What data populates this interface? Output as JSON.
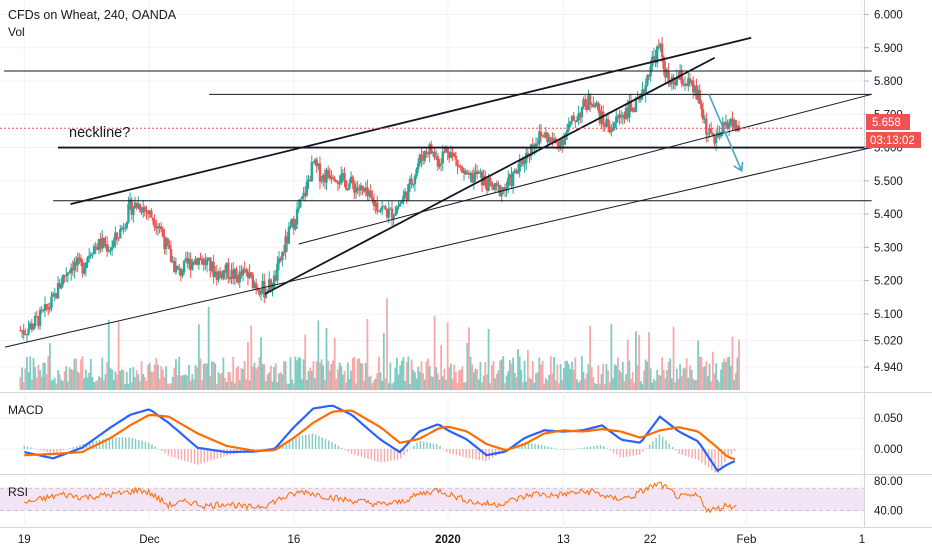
{
  "header": {
    "symbol": "CFDs on Wheat",
    "interval": "240",
    "broker": "OANDA",
    "sep": ", ",
    "vol_label": "Vol"
  },
  "colors": {
    "up": "#26a69a",
    "down": "#ef5350",
    "vol_up": "#80cbc4",
    "vol_down": "#f6a9a8",
    "macd": "#2962ff",
    "signal": "#ff6d00",
    "rsi": "#ff6d00",
    "rsi_band": "#f3e5f5",
    "price_tag": "#ef5350",
    "arrow": "#4aa3c7"
  },
  "chart_data": [
    {
      "type": "candlestick",
      "title": "CFDs on Wheat, 240, OANDA",
      "y_axis_ticks": [
        "6.000",
        "5.900",
        "5.800",
        "5.700",
        "5.600",
        "5.500",
        "5.400",
        "5.300",
        "5.200",
        "5.100",
        "5.020",
        "4.940"
      ],
      "ylim": [
        4.92,
        6.04
      ],
      "x_axis_ticks": [
        "19",
        "Dec",
        "16",
        "2020",
        "13",
        "22",
        "Feb",
        "1"
      ],
      "x_axis_tick_days": [
        19,
        32,
        47,
        63,
        75,
        84,
        94,
        106
      ],
      "last_price": "5.658",
      "countdown": "03:13:02",
      "annotation": "neckline?",
      "close_path": [
        [
          19,
          5.05
        ],
        [
          20,
          5.07
        ],
        [
          21,
          5.1
        ],
        [
          22,
          5.14
        ],
        [
          23,
          5.21
        ],
        [
          24,
          5.25
        ],
        [
          25,
          5.24
        ],
        [
          26,
          5.3
        ],
        [
          27,
          5.31
        ],
        [
          28,
          5.3
        ],
        [
          29,
          5.35
        ],
        [
          30,
          5.42
        ],
        [
          31,
          5.43
        ],
        [
          32,
          5.4
        ],
        [
          33,
          5.37
        ],
        [
          34,
          5.28
        ],
        [
          35,
          5.22
        ],
        [
          36,
          5.25
        ],
        [
          37,
          5.27
        ],
        [
          38,
          5.25
        ],
        [
          39,
          5.22
        ],
        [
          40,
          5.23
        ],
        [
          41,
          5.21
        ],
        [
          42,
          5.22
        ],
        [
          43,
          5.19
        ],
        [
          44,
          5.17
        ],
        [
          45,
          5.2
        ],
        [
          46,
          5.3
        ],
        [
          47,
          5.38
        ],
        [
          48,
          5.45
        ],
        [
          49,
          5.55
        ],
        [
          50,
          5.51
        ],
        [
          51,
          5.53
        ],
        [
          52,
          5.5
        ],
        [
          53,
          5.49
        ],
        [
          54,
          5.47
        ],
        [
          55,
          5.44
        ],
        [
          56,
          5.42
        ],
        [
          57,
          5.4
        ],
        [
          58,
          5.43
        ],
        [
          59,
          5.48
        ],
        [
          60,
          5.56
        ],
        [
          61,
          5.6
        ],
        [
          62,
          5.56
        ],
        [
          63,
          5.6
        ],
        [
          64,
          5.55
        ],
        [
          65,
          5.5
        ],
        [
          66,
          5.52
        ],
        [
          67,
          5.49
        ],
        [
          68,
          5.47
        ],
        [
          69,
          5.48
        ],
        [
          70,
          5.52
        ],
        [
          71,
          5.57
        ],
        [
          72,
          5.62
        ],
        [
          73,
          5.64
        ],
        [
          74,
          5.61
        ],
        [
          75,
          5.63
        ],
        [
          76,
          5.68
        ],
        [
          77,
          5.72
        ],
        [
          78,
          5.75
        ],
        [
          79,
          5.68
        ],
        [
          80,
          5.66
        ],
        [
          81,
          5.7
        ],
        [
          82,
          5.72
        ],
        [
          83,
          5.73
        ],
        [
          84,
          5.85
        ],
        [
          85,
          5.9
        ],
        [
          86,
          5.78
        ],
        [
          87,
          5.81
        ],
        [
          88,
          5.79
        ],
        [
          89,
          5.75
        ],
        [
          90,
          5.64
        ],
        [
          91,
          5.62
        ],
        [
          92,
          5.68
        ],
        [
          93,
          5.66
        ]
      ],
      "volume_lim": [
        0,
        1
      ]
    },
    {
      "type": "line",
      "title": "MACD",
      "y_axis_ticks": [
        "0.050",
        "0.000"
      ],
      "ylim": [
        -0.085,
        0.095
      ],
      "series": [
        {
          "name": "MACD",
          "color": "#2962ff",
          "x": [
            19,
            22,
            25,
            28,
            30,
            32,
            34,
            37,
            40,
            43,
            45,
            47,
            49,
            51,
            53,
            56,
            58,
            60,
            62,
            63,
            65,
            67,
            69,
            71,
            73,
            75,
            77,
            79,
            81,
            83,
            85,
            87,
            89,
            91,
            92,
            93
          ],
          "values": [
            -0.005,
            -0.015,
            0.002,
            0.035,
            0.055,
            0.064,
            0.042,
            0.002,
            -0.005,
            -0.004,
            0.0,
            0.035,
            0.065,
            0.07,
            0.055,
            0.015,
            -0.005,
            0.028,
            0.04,
            0.03,
            0.015,
            -0.01,
            -0.004,
            0.018,
            0.03,
            0.028,
            0.03,
            0.038,
            0.015,
            0.01,
            0.052,
            0.028,
            0.012,
            -0.035,
            -0.025,
            -0.018
          ]
        },
        {
          "name": "Signal",
          "color": "#ff6d00",
          "x": [
            19,
            22,
            25,
            28,
            30,
            32,
            34,
            37,
            40,
            43,
            45,
            47,
            49,
            51,
            53,
            56,
            58,
            60,
            62,
            63,
            65,
            67,
            69,
            71,
            73,
            75,
            77,
            79,
            81,
            83,
            85,
            87,
            89,
            91,
            92,
            93
          ],
          "values": [
            -0.01,
            -0.008,
            -0.005,
            0.018,
            0.038,
            0.055,
            0.052,
            0.025,
            0.005,
            -0.003,
            -0.002,
            0.018,
            0.042,
            0.06,
            0.062,
            0.035,
            0.01,
            0.016,
            0.033,
            0.036,
            0.028,
            0.008,
            -0.002,
            0.008,
            0.025,
            0.03,
            0.028,
            0.032,
            0.028,
            0.018,
            0.03,
            0.035,
            0.028,
            0.002,
            -0.012,
            -0.018
          ]
        }
      ]
    },
    {
      "type": "line",
      "title": "RSI",
      "y_axis_ticks": [
        "80.00",
        "40.00"
      ],
      "ylim": [
        25,
        85
      ],
      "band": [
        40,
        70
      ],
      "series": [
        {
          "name": "RSI",
          "color": "#ff6d00",
          "x": [
            19,
            21,
            23,
            25,
            27,
            29,
            31,
            32,
            34,
            36,
            38,
            40,
            42,
            44,
            46,
            48,
            50,
            52,
            54,
            56,
            58,
            60,
            62,
            64,
            66,
            68,
            70,
            72,
            74,
            76,
            78,
            80,
            82,
            84,
            85,
            87,
            89,
            90,
            91,
            92,
            93
          ],
          "values": [
            50,
            56,
            62,
            58,
            60,
            63,
            68,
            64,
            47,
            52,
            46,
            50,
            44,
            47,
            58,
            66,
            60,
            55,
            52,
            48,
            51,
            62,
            68,
            58,
            50,
            48,
            55,
            63,
            60,
            64,
            66,
            56,
            58,
            72,
            76,
            58,
            60,
            40,
            42,
            48,
            44
          ]
        }
      ]
    }
  ]
}
